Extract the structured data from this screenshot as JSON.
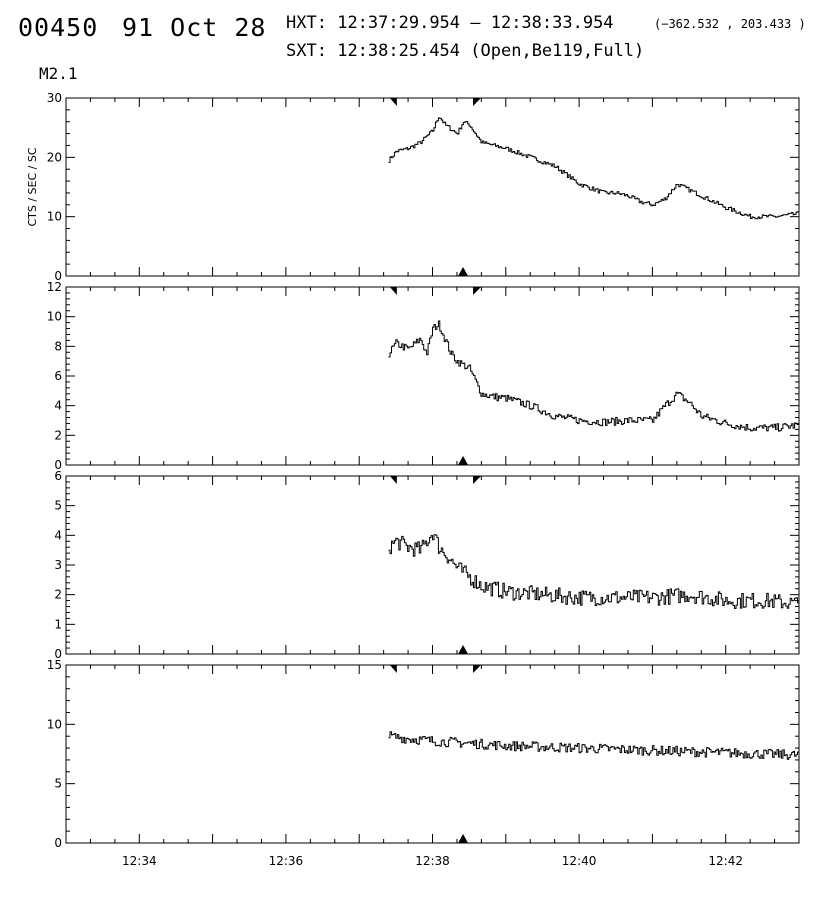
{
  "header": {
    "event_id": "00450",
    "date": "91 Oct 28",
    "hxt_label": "HXT:",
    "hxt_range": "12:37:29.954 – 12:38:33.954",
    "hxt_coords": "(−362.532 , 203.433 )",
    "sxt_label": "SXT:",
    "sxt_time": "12:38:25.454",
    "sxt_params": "(Open,Be119,Full)",
    "goes_class": "M2.1"
  },
  "chart_data": [
    {
      "type": "line",
      "panel": 1,
      "ylabel": "CTS / SEC / SC",
      "xlim": [
        "12:33:00",
        "12:43:00"
      ],
      "ylim": [
        0,
        30
      ],
      "yticks": [
        0,
        10,
        20,
        30
      ],
      "xtick_labels": [
        "12:34",
        "12:36",
        "12:38",
        "12:40",
        "12:42"
      ],
      "series": [
        {
          "x": [
            "12:37:24",
            "12:37:30",
            "12:37:40",
            "12:37:50",
            "12:38:00",
            "12:38:05",
            "12:38:10",
            "12:38:20",
            "12:38:25",
            "12:38:30",
            "12:38:40",
            "12:38:50",
            "12:39:00",
            "12:39:20",
            "12:39:40",
            "12:40:00",
            "12:40:20",
            "12:40:30",
            "12:40:40",
            "12:40:50",
            "12:41:00",
            "12:41:10",
            "12:41:20",
            "12:41:30",
            "12:41:40",
            "12:42:00",
            "12:42:20",
            "12:42:40",
            "12:43:00"
          ],
          "y": [
            19.5,
            21,
            21.5,
            22.5,
            24.5,
            27,
            25.5,
            24,
            26,
            25.5,
            22.5,
            22,
            21.5,
            20,
            18.5,
            15.5,
            14,
            14,
            13.5,
            12.5,
            12,
            13,
            15.5,
            14.5,
            13.5,
            11.5,
            10,
            10,
            10.5
          ]
        }
      ],
      "markers_top": [
        "12:37:30",
        "12:38:34"
      ],
      "marker_bottom": "12:38:25"
    },
    {
      "type": "line",
      "panel": 2,
      "ylim": [
        0,
        12
      ],
      "yticks": [
        0,
        2,
        4,
        6,
        8,
        10,
        12
      ],
      "series": [
        {
          "x": [
            "12:37:24",
            "12:37:30",
            "12:37:40",
            "12:37:50",
            "12:37:55",
            "12:38:00",
            "12:38:05",
            "12:38:10",
            "12:38:15",
            "12:38:20",
            "12:38:30",
            "12:38:40",
            "12:38:50",
            "12:39:00",
            "12:39:20",
            "12:39:40",
            "12:40:00",
            "12:40:20",
            "12:40:40",
            "12:41:00",
            "12:41:10",
            "12:41:20",
            "12:41:30",
            "12:41:40",
            "12:42:00",
            "12:42:20",
            "12:42:40",
            "12:43:00"
          ],
          "y": [
            7.5,
            8.2,
            7.8,
            8.5,
            7.5,
            9.2,
            9.5,
            8.5,
            7.5,
            7,
            6.5,
            4.8,
            4.6,
            4.5,
            4,
            3.3,
            3,
            2.9,
            3,
            3,
            4,
            4.8,
            4.2,
            3.3,
            2.8,
            2.5,
            2.5,
            2.7
          ]
        }
      ],
      "markers_top": [
        "12:37:30",
        "12:38:34"
      ],
      "marker_bottom": "12:38:25"
    },
    {
      "type": "line",
      "panel": 3,
      "ylim": [
        0,
        6
      ],
      "yticks": [
        0,
        1,
        2,
        3,
        4,
        5,
        6
      ],
      "series": [
        {
          "x": [
            "12:37:24",
            "12:37:30",
            "12:37:40",
            "12:37:50",
            "12:38:00",
            "12:38:05",
            "12:38:10",
            "12:38:20",
            "12:38:30",
            "12:38:40",
            "12:38:50",
            "12:39:00",
            "12:39:30",
            "12:40:00",
            "12:40:30",
            "12:41:00",
            "12:41:30",
            "12:42:00",
            "12:42:30",
            "12:43:00"
          ],
          "y": [
            3.6,
            3.8,
            3.6,
            3.5,
            4.1,
            3.6,
            3.4,
            2.9,
            2.6,
            2.3,
            2.2,
            2.1,
            2.0,
            1.9,
            1.9,
            1.9,
            2.0,
            1.8,
            1.8,
            1.7
          ]
        }
      ],
      "markers_top": [
        "12:37:30",
        "12:38:34"
      ],
      "marker_bottom": "12:38:25"
    },
    {
      "type": "line",
      "panel": 4,
      "ylim": [
        0,
        15
      ],
      "yticks": [
        0,
        5,
        10,
        15
      ],
      "series": [
        {
          "x": [
            "12:37:24",
            "12:37:40",
            "12:38:00",
            "12:38:30",
            "12:39:00",
            "12:39:30",
            "12:40:00",
            "12:40:30",
            "12:41:00",
            "12:41:30",
            "12:42:00",
            "12:42:30",
            "12:43:00"
          ],
          "y": [
            9,
            8.8,
            8.6,
            8.4,
            8.2,
            8.1,
            8.0,
            7.9,
            7.8,
            7.7,
            7.6,
            7.5,
            7.4
          ]
        }
      ],
      "markers_top": [
        "12:37:30",
        "12:38:34"
      ],
      "marker_bottom": "12:38:25"
    }
  ]
}
